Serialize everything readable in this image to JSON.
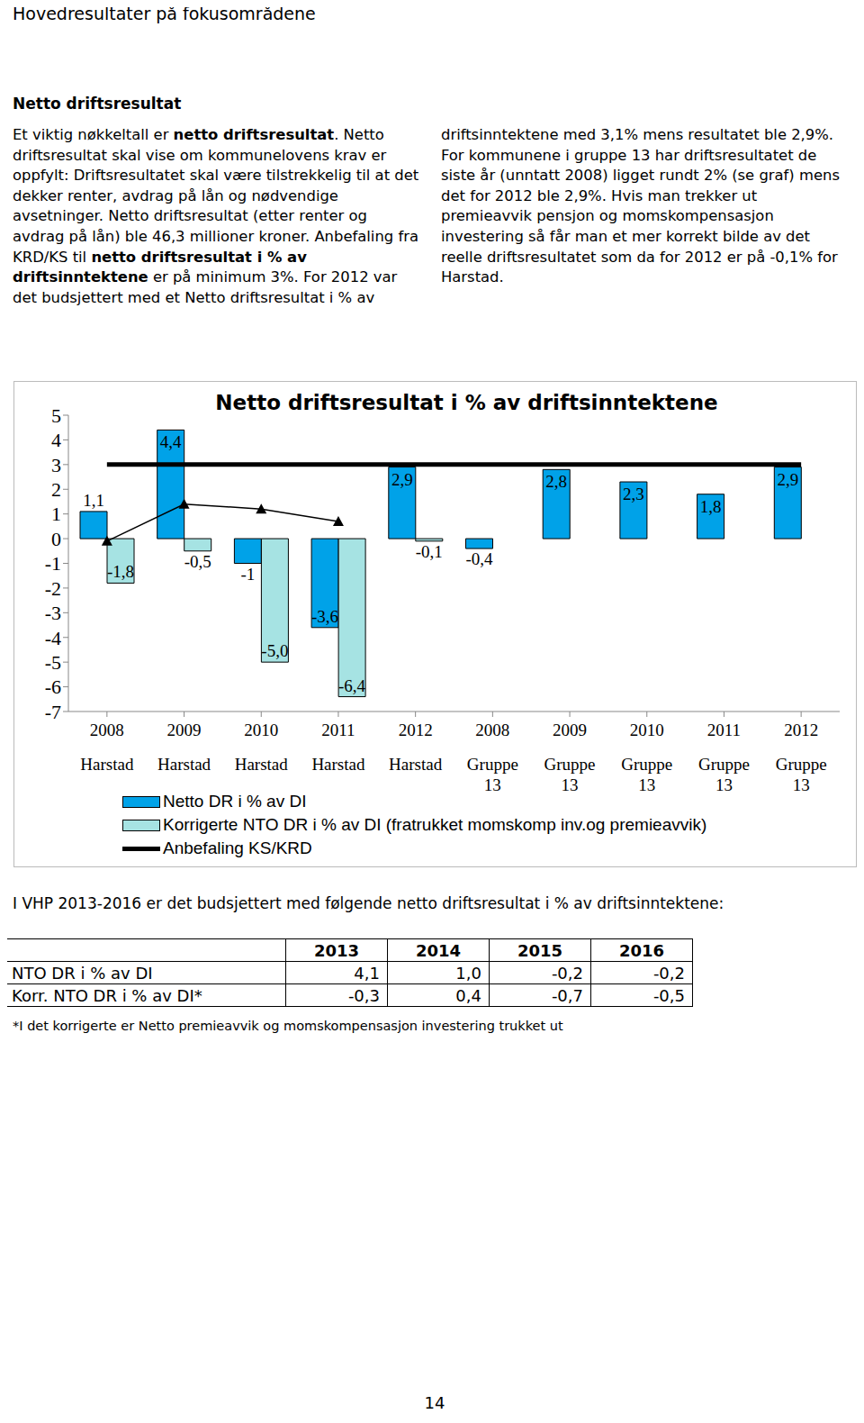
{
  "header": {
    "title": "Hovedresultater på fokusområdene"
  },
  "section": {
    "heading": "Netto driftsresultat",
    "body": [
      {
        "text": "Et viktig nøkkeltall er "
      },
      {
        "text": "netto driftsresultat",
        "bold": true
      },
      {
        "text": ". Netto driftsresultat skal vise om kommunelovens krav er oppfylt: Driftsresultatet skal være tilstrekkelig til at det dekker renter, avdrag på lån og nødvendige avsetninger. Netto driftsresultat (etter renter og avdrag på lån) ble 46,3 millioner kroner. Anbefaling fra KRD/KS til "
      },
      {
        "text": "netto driftsresultat i % av driftsinntektene",
        "bold": true
      },
      {
        "text": " er på minimum 3%. For 2012 var det budsjettert med et Netto driftsresultat i % av driftsinntektene med 3,1% mens resultatet ble 2,9%. For kommunene i gruppe 13 har driftsresultatet de siste år (unntatt 2008) ligget rundt 2% (se graf) mens det for 2012 ble 2,9%. Hvis man trekker ut premieavvik pensjon og momskompensasjon investering så får man et mer korrekt bilde av det reelle driftsresultatet som da for 2012 er på -0,1% for Harstad."
      }
    ]
  },
  "chart_data": {
    "type": "bar",
    "title": "Netto driftsresultat i % av driftsinntektene",
    "categories": [
      "2008 Harstad",
      "2009 Harstad",
      "2010 Harstad",
      "2011 Harstad",
      "2012 Harstad",
      "2008 Gruppe 13",
      "2009 Gruppe 13",
      "2010 Gruppe 13",
      "2011 Gruppe 13",
      "2012 Gruppe 13"
    ],
    "series": [
      {
        "name": "Netto DR i % av DI",
        "type": "bar",
        "color": "#00a2e8",
        "values": [
          1.1,
          4.4,
          -1,
          -3.6,
          2.9,
          -0.4,
          2.8,
          2.3,
          1.8,
          2.9
        ],
        "value_labels": [
          "1,1",
          "4,4",
          "-1",
          "-3,6",
          "2,9",
          "-0,4",
          "2,8",
          "2,3",
          "1,8",
          "2,9"
        ]
      },
      {
        "name": "Korrigerte NTO DR i % av DI (fratrukket momskomp inv.og premieavvik)",
        "type": "bar",
        "color": "#a6e3e3",
        "values": [
          -1.8,
          -0.5,
          -5.0,
          -6.4,
          -0.1,
          null,
          null,
          null,
          null,
          null
        ],
        "value_labels": [
          "-1,8",
          "-0,5",
          "-5,0",
          "-6,4",
          "-0,1",
          null,
          null,
          null,
          null,
          null
        ]
      },
      {
        "name": "Anbefaling KS/KRD",
        "type": "line",
        "color": "#000000",
        "line_style": "solid",
        "marker": "none",
        "values": [
          3,
          3,
          3,
          3,
          3,
          3,
          3,
          3,
          3,
          3
        ]
      },
      {
        "type": "line",
        "color": "#000000",
        "line_style": "solid",
        "marker": "triangle",
        "values": [
          -0.1,
          1.4,
          1.2,
          0.7,
          null,
          null,
          null,
          null,
          null,
          null
        ]
      }
    ],
    "ylim": [
      -7,
      5
    ],
    "yticks": [
      5,
      4,
      3,
      2,
      1,
      0,
      -1,
      -2,
      -3,
      -4,
      -5,
      -6,
      -7
    ],
    "grid": false,
    "data_labels": true,
    "legend": "bottom"
  },
  "table_intro": "I VHP 2013-2016 er det budsjettert med følgende netto driftsresultat i % av driftsinntektene:",
  "table": {
    "header": [
      "",
      "2013",
      "2014",
      "2015",
      "2016"
    ],
    "rows": [
      [
        "NTO DR i % av DI",
        "4,1",
        "1,0",
        "-0,2",
        "-0,2"
      ],
      [
        "Korr. NTO DR i % av DI*",
        "-0,3",
        "0,4",
        "-0,7",
        "-0,5"
      ]
    ]
  },
  "footnote": "*I det korrigerte er Netto premieavvik og momskompensasjon investering trukket ut",
  "page_number": "14"
}
